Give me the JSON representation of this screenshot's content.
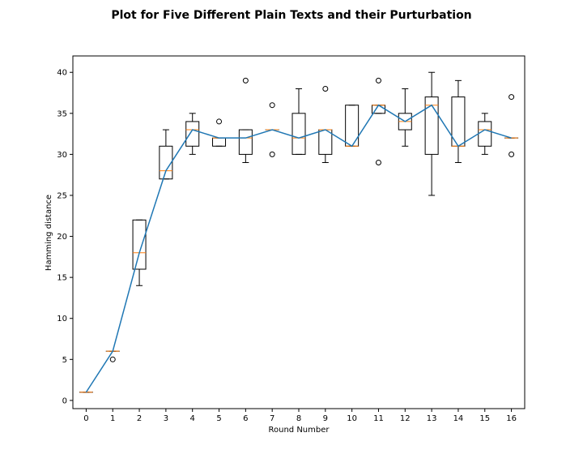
{
  "chart_data": {
    "type": "box",
    "title": "Plot for Five Different Plain Texts and their Purturbation",
    "xlabel": "Round Number",
    "ylabel": "Hamming distance",
    "categories": [
      "0",
      "1",
      "2",
      "3",
      "4",
      "5",
      "6",
      "7",
      "8",
      "9",
      "10",
      "11",
      "12",
      "13",
      "14",
      "15",
      "16"
    ],
    "xlim": [
      -0.5,
      16.5
    ],
    "ylim": [
      -1,
      42
    ],
    "yticks": [
      0,
      5,
      10,
      15,
      20,
      25,
      30,
      35,
      40
    ],
    "ytick_labels": [
      "0",
      "5",
      "10",
      "15",
      "20",
      "25",
      "30",
      "35",
      "40"
    ],
    "grid": false,
    "boxes": [
      {
        "round": 0,
        "min": 1,
        "q1": 1,
        "median": 1,
        "q3": 1,
        "max": 1,
        "fliers": []
      },
      {
        "round": 1,
        "min": 6,
        "q1": 6,
        "median": 6,
        "q3": 6,
        "max": 6,
        "fliers": [
          5
        ]
      },
      {
        "round": 2,
        "min": 14,
        "q1": 16,
        "median": 18,
        "q3": 22,
        "max": 22,
        "fliers": []
      },
      {
        "round": 3,
        "min": 27,
        "q1": 27,
        "median": 28,
        "q3": 31,
        "max": 33,
        "fliers": []
      },
      {
        "round": 4,
        "min": 30,
        "q1": 31,
        "median": 33,
        "q3": 34,
        "max": 35,
        "fliers": []
      },
      {
        "round": 5,
        "min": 31,
        "q1": 31,
        "median": 32,
        "q3": 32,
        "max": 32,
        "fliers": [
          34
        ]
      },
      {
        "round": 6,
        "min": 29,
        "q1": 30,
        "median": 32,
        "q3": 33,
        "max": 33,
        "fliers": [
          39
        ]
      },
      {
        "round": 7,
        "min": 33,
        "q1": 33,
        "median": 33,
        "q3": 33,
        "max": 33,
        "fliers": [
          36,
          30
        ]
      },
      {
        "round": 8,
        "min": 30,
        "q1": 30,
        "median": 32,
        "q3": 35,
        "max": 38,
        "fliers": []
      },
      {
        "round": 9,
        "min": 29,
        "q1": 30,
        "median": 33,
        "q3": 33,
        "max": 33,
        "fliers": [
          38
        ]
      },
      {
        "round": 10,
        "min": 31,
        "q1": 31,
        "median": 31,
        "q3": 36,
        "max": 36,
        "fliers": []
      },
      {
        "round": 11,
        "min": 35,
        "q1": 35,
        "median": 36,
        "q3": 36,
        "max": 36,
        "fliers": [
          39,
          29
        ]
      },
      {
        "round": 12,
        "min": 31,
        "q1": 33,
        "median": 34,
        "q3": 35,
        "max": 38,
        "fliers": []
      },
      {
        "round": 13,
        "min": 25,
        "q1": 30,
        "median": 36,
        "q3": 37,
        "max": 40,
        "fliers": []
      },
      {
        "round": 14,
        "min": 29,
        "q1": 31,
        "median": 31,
        "q3": 37,
        "max": 39,
        "fliers": []
      },
      {
        "round": 15,
        "min": 30,
        "q1": 31,
        "median": 33,
        "q3": 34,
        "max": 35,
        "fliers": []
      },
      {
        "round": 16,
        "min": 32,
        "q1": 32,
        "median": 32,
        "q3": 32,
        "max": 32,
        "fliers": [
          37,
          30
        ]
      }
    ],
    "line": {
      "x": [
        0,
        1,
        2,
        3,
        4,
        5,
        6,
        7,
        8,
        9,
        10,
        11,
        12,
        13,
        14,
        15,
        16
      ],
      "y": [
        1,
        6,
        18,
        28,
        33,
        32,
        32,
        33,
        32,
        33,
        31,
        36,
        34,
        36,
        31,
        33,
        32
      ]
    },
    "colors": {
      "box": "#000000",
      "median": "#ff7f0e",
      "line": "#1f77b4",
      "flier": "#000000"
    }
  }
}
